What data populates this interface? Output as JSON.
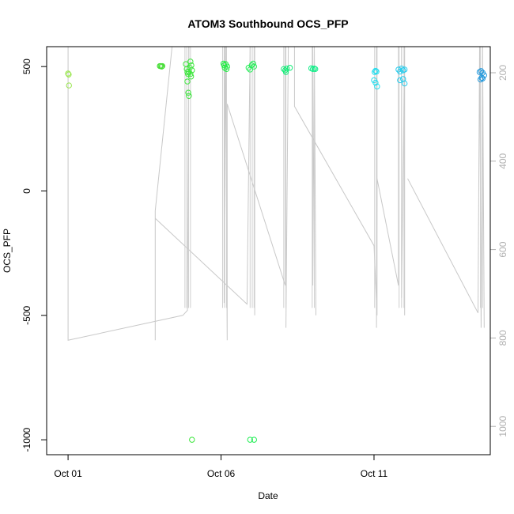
{
  "chart_data": {
    "type": "scatter",
    "title": "ATOM3 Southbound OCS_PFP",
    "xlabel": "Date",
    "ylabel": "OCS_PFP",
    "x_unit": "days (October)",
    "xlim": [
      0.3,
      14.8
    ],
    "ylim": [
      -1060,
      580
    ],
    "x_ticks": [
      {
        "value": 1,
        "label": "Oct 01"
      },
      {
        "value": 6,
        "label": "Oct 06"
      },
      {
        "value": 11,
        "label": "Oct 11"
      }
    ],
    "y_ticks": [
      {
        "value": 500,
        "label": "500"
      },
      {
        "value": 0,
        "label": "0"
      },
      {
        "value": -500,
        "label": "-500"
      },
      {
        "value": -1000,
        "label": "-1000"
      }
    ],
    "right_axis": {
      "label": "",
      "lim": [
        1064,
        141
      ],
      "ticks": [
        200,
        400,
        600,
        800,
        1000
      ],
      "color": "#b0b0b0"
    },
    "grid": false,
    "legend": "none",
    "series": [
      {
        "color": "#99e64d",
        "points": [
          [
            1.0,
            472
          ],
          [
            1.02,
            468
          ],
          [
            1.03,
            424
          ]
        ]
      },
      {
        "color": "#44dd33",
        "points": [
          [
            4.0,
            502
          ],
          [
            4.03,
            502
          ],
          [
            4.06,
            500
          ],
          [
            4.08,
            502
          ]
        ]
      },
      {
        "color": "#3de63d",
        "points": [
          [
            4.85,
            510
          ],
          [
            4.88,
            490
          ],
          [
            4.9,
            478
          ],
          [
            4.92,
            470
          ],
          [
            4.95,
            480
          ],
          [
            4.98,
            495
          ],
          [
            5.0,
            470
          ],
          [
            5.02,
            460
          ],
          [
            5.05,
            485
          ],
          [
            4.9,
            440
          ],
          [
            4.93,
            395
          ],
          [
            4.95,
            382
          ],
          [
            5.0,
            520
          ],
          [
            5.03,
            505
          ],
          [
            5.05,
            -1000
          ]
        ]
      },
      {
        "color": "#22ee44",
        "points": [
          [
            6.08,
            512
          ],
          [
            6.1,
            505
          ],
          [
            6.12,
            495
          ],
          [
            6.15,
            510
          ],
          [
            6.18,
            490
          ],
          [
            6.2,
            500
          ]
        ]
      },
      {
        "color": "#22ee55",
        "points": [
          [
            6.9,
            495
          ],
          [
            6.95,
            488
          ],
          [
            7.0,
            505
          ],
          [
            7.05,
            512
          ],
          [
            7.08,
            500
          ],
          [
            6.95,
            -1000
          ],
          [
            7.08,
            -1000
          ]
        ]
      },
      {
        "color": "#11ee77",
        "points": [
          [
            8.05,
            490
          ],
          [
            8.1,
            485
          ],
          [
            8.12,
            478
          ],
          [
            8.15,
            492
          ],
          [
            8.25,
            495
          ]
        ]
      },
      {
        "color": "#11ee88",
        "points": [
          [
            8.95,
            493
          ],
          [
            9.0,
            490
          ],
          [
            9.05,
            492
          ],
          [
            9.08,
            490
          ]
        ]
      },
      {
        "color": "#22ddee",
        "points": [
          [
            11.02,
            478
          ],
          [
            11.05,
            483
          ],
          [
            11.08,
            480
          ],
          [
            11.0,
            445
          ],
          [
            11.05,
            435
          ],
          [
            11.1,
            420
          ]
        ]
      },
      {
        "color": "#22ccee",
        "points": [
          [
            11.8,
            488
          ],
          [
            11.85,
            480
          ],
          [
            11.9,
            492
          ],
          [
            11.95,
            485
          ],
          [
            12.0,
            488
          ],
          [
            11.85,
            445
          ],
          [
            11.95,
            450
          ],
          [
            12.0,
            432
          ]
        ]
      },
      {
        "color": "#2299dd",
        "points": [
          [
            14.45,
            478
          ],
          [
            14.5,
            482
          ],
          [
            14.55,
            475
          ],
          [
            14.6,
            465
          ],
          [
            14.52,
            455
          ],
          [
            14.48,
            448
          ],
          [
            14.55,
            452
          ]
        ]
      }
    ]
  }
}
